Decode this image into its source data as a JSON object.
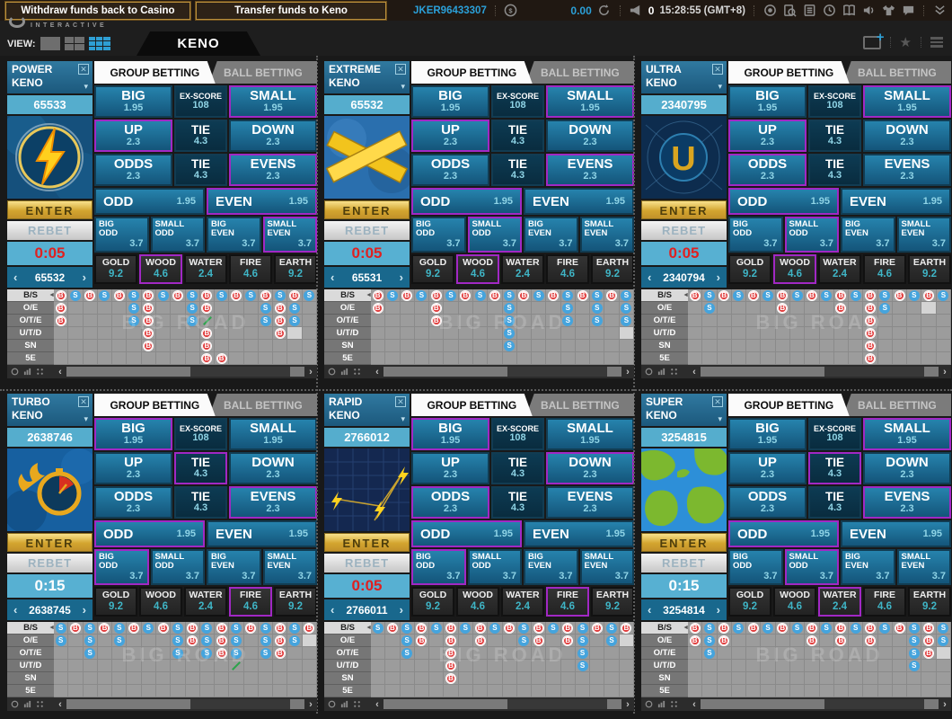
{
  "topbar": {
    "withdraw_label": "Withdraw funds back to Casino",
    "transfer_label": "Transfer funds to Keno",
    "username": "JKER96433307",
    "balance": "0.00",
    "bet_count": "0",
    "time": "15:28:55 (GMT+8)"
  },
  "navbar": {
    "brand_text": "INTERACTIVE",
    "view_label": "VIEW:",
    "tab_label": "KENO"
  },
  "icons": {
    "close": "✕",
    "chevron_down": "▾",
    "prev": "‹",
    "next": "›",
    "label_arrow": "◄"
  },
  "bet_template": {
    "tabs": [
      "GROUP BETTING",
      "BALL BETTING"
    ],
    "enter_label": "ENTER",
    "rebet_label": "REBET",
    "main": [
      {
        "key": "big",
        "label": "BIG",
        "value": "1.95"
      },
      {
        "key": "exscore",
        "label": "EX-SCORE",
        "value": "108",
        "dark": true,
        "small_label": true
      },
      {
        "key": "small",
        "label": "SMALL",
        "value": "1.95"
      },
      {
        "key": "up",
        "label": "UP",
        "value": "2.3"
      },
      {
        "key": "tie1",
        "label": "TIE",
        "value": "4.3",
        "dark": true
      },
      {
        "key": "down",
        "label": "DOWN",
        "value": "2.3"
      },
      {
        "key": "odds",
        "label": "ODDS",
        "value": "2.3"
      },
      {
        "key": "tie2",
        "label": "TIE",
        "value": "4.3",
        "dark": true
      },
      {
        "key": "evens",
        "label": "EVENS",
        "value": "2.3"
      }
    ],
    "oddeven": [
      {
        "key": "odd",
        "label": "ODD",
        "value": "1.95"
      },
      {
        "key": "even",
        "label": "EVEN",
        "value": "1.95"
      }
    ],
    "combos": [
      {
        "key": "bigodd",
        "label": "BIG ODD",
        "value": "3.7"
      },
      {
        "key": "smallodd",
        "label": "SMALL ODD",
        "value": "3.7"
      },
      {
        "key": "bigeven",
        "label": "BIG EVEN",
        "value": "3.7"
      },
      {
        "key": "smalleven",
        "label": "SMALL EVEN",
        "value": "3.7"
      }
    ],
    "elements": [
      {
        "key": "gold",
        "label": "GOLD",
        "value": "9.2"
      },
      {
        "key": "wood",
        "label": "WOOD",
        "value": "4.6"
      },
      {
        "key": "water",
        "label": "WATER",
        "value": "2.4"
      },
      {
        "key": "fire",
        "label": "FIRE",
        "value": "4.6"
      },
      {
        "key": "earth",
        "label": "EARTH",
        "value": "9.2"
      }
    ],
    "road_rows": [
      "B/S",
      "O/E",
      "O/T/E",
      "U/T/D",
      "SN",
      "5E"
    ],
    "road_watermark": "BIG ROAD"
  },
  "colors": {
    "accent_blue": "#2ba0d8",
    "highlight_purple": "#a128c4",
    "big_red": "#e13b3b",
    "small_blue": "#45a4dd",
    "gold": "#d3a52f"
  },
  "panels": [
    {
      "name_line1": "POWER",
      "name_line2": "KENO",
      "round": "65533",
      "prev_round": "65532",
      "timer": "0:05",
      "timer_urgent": true,
      "logo": "power",
      "highlights": [
        "small",
        "up",
        "evens",
        "even",
        "smalleven",
        "wood"
      ],
      "road": [
        [
          "B",
          "S",
          "B",
          "S",
          "B",
          "S",
          "B",
          "S",
          "B",
          "S",
          "B",
          "S",
          "B",
          "S",
          "B",
          "S",
          "B",
          "S"
        ],
        [
          "B",
          "",
          "",
          "",
          "",
          "S",
          "B",
          "",
          "",
          "S",
          "B",
          "",
          "",
          "",
          "S",
          "B",
          "S",
          ""
        ],
        [
          "B",
          "",
          "",
          "",
          "",
          "S",
          "B",
          "",
          "",
          "S",
          "X",
          "",
          "",
          "",
          "S",
          "B",
          "S",
          ""
        ],
        [
          "",
          "",
          "",
          "",
          "",
          "",
          "B",
          "",
          "",
          "",
          "B",
          "",
          "",
          "",
          "",
          "B",
          "H",
          ""
        ],
        [
          "",
          "",
          "",
          "",
          "",
          "",
          "B",
          "",
          "",
          "",
          "B",
          "",
          "",
          "",
          "",
          "",
          "",
          ""
        ],
        [
          "",
          "",
          "",
          "",
          "",
          "",
          "",
          "",
          "",
          "",
          "B",
          "B",
          "",
          "",
          "",
          "",
          "",
          ""
        ]
      ]
    },
    {
      "name_line1": "EXTREME",
      "name_line2": "KENO",
      "round": "65532",
      "prev_round": "65531",
      "timer": "0:05",
      "timer_urgent": true,
      "logo": "extreme",
      "highlights": [
        "small",
        "up",
        "evens",
        "odd",
        "smallodd",
        "wood"
      ],
      "road": [
        [
          "B",
          "S",
          "B",
          "S",
          "B",
          "S",
          "B",
          "S",
          "B",
          "S",
          "B",
          "S",
          "B",
          "S",
          "B",
          "S",
          "B",
          "S"
        ],
        [
          "B",
          "",
          "",
          "",
          "B",
          "",
          "",
          "",
          "",
          "S",
          "",
          "",
          "",
          "S",
          "",
          "S",
          "",
          "S"
        ],
        [
          "",
          "",
          "",
          "",
          "B",
          "",
          "",
          "",
          "",
          "S",
          "",
          "",
          "",
          "S",
          "",
          "S",
          "",
          "S"
        ],
        [
          "",
          "",
          "",
          "",
          "",
          "",
          "",
          "",
          "",
          "S",
          "",
          "",
          "",
          "",
          "",
          "",
          "",
          "H"
        ],
        [
          "",
          "",
          "",
          "",
          "",
          "",
          "",
          "",
          "",
          "S",
          "",
          "",
          "",
          "",
          "",
          "",
          "",
          ""
        ],
        [
          "",
          "",
          "",
          "",
          "",
          "",
          "",
          "",
          "",
          "",
          "",
          "",
          "",
          "",
          "",
          "",
          "",
          ""
        ]
      ]
    },
    {
      "name_line1": "ULTRA",
      "name_line2": "KENO",
      "round": "2340795",
      "prev_round": "2340794",
      "timer": "0:05",
      "timer_urgent": true,
      "logo": "ultra",
      "highlights": [
        "small",
        "up",
        "odds",
        "odd",
        "smallodd",
        "wood"
      ],
      "road": [
        [
          "B",
          "S",
          "B",
          "S",
          "B",
          "S",
          "B",
          "S",
          "B",
          "S",
          "B",
          "S",
          "B",
          "S",
          "B",
          "S",
          "B",
          "S"
        ],
        [
          "",
          "S",
          "",
          "",
          "",
          "",
          "B",
          "",
          "",
          "",
          "B",
          "",
          "B",
          "S",
          "",
          "",
          "H",
          ""
        ],
        [
          "",
          "",
          "",
          "",
          "",
          "",
          "",
          "",
          "",
          "",
          "",
          "",
          "B",
          "",
          "",
          "",
          "",
          ""
        ],
        [
          "",
          "",
          "",
          "",
          "",
          "",
          "",
          "",
          "",
          "",
          "",
          "",
          "B",
          "",
          "",
          "",
          "",
          ""
        ],
        [
          "",
          "",
          "",
          "",
          "",
          "",
          "",
          "",
          "",
          "",
          "",
          "",
          "B",
          "",
          "",
          "",
          "",
          ""
        ],
        [
          "",
          "",
          "",
          "",
          "",
          "",
          "",
          "",
          "",
          "",
          "",
          "",
          "B",
          "",
          "",
          "",
          "",
          ""
        ]
      ]
    },
    {
      "name_line1": "TURBO",
      "name_line2": "KENO",
      "round": "2638746",
      "prev_round": "2638745",
      "timer": "0:15",
      "timer_urgent": false,
      "logo": "turbo",
      "highlights": [
        "big",
        "tie1",
        "evens",
        "odd",
        "bigodd",
        "fire"
      ],
      "road": [
        [
          "S",
          "B",
          "S",
          "B",
          "S",
          "B",
          "S",
          "B",
          "S",
          "B",
          "S",
          "B",
          "S",
          "B",
          "S",
          "B",
          "S",
          "B"
        ],
        [
          "S",
          "",
          "S",
          "",
          "S",
          "",
          "",
          "",
          "S",
          "B",
          "S",
          "B",
          "S",
          "",
          "S",
          "B",
          "S",
          "H"
        ],
        [
          "",
          "",
          "S",
          "",
          "",
          "",
          "",
          "",
          "S",
          "",
          "S",
          "B",
          "S",
          "",
          "S",
          "B",
          "",
          ""
        ],
        [
          "",
          "",
          "",
          "",
          "",
          "",
          "",
          "",
          "",
          "",
          "",
          "",
          "X",
          "",
          "",
          "",
          "",
          ""
        ],
        [
          "",
          "",
          "",
          "",
          "",
          "",
          "",
          "",
          "",
          "",
          "",
          "",
          "",
          "",
          "",
          "",
          "",
          ""
        ],
        [
          "",
          "",
          "",
          "",
          "",
          "",
          "",
          "",
          "",
          "",
          "",
          "",
          "",
          "",
          "",
          "",
          "",
          ""
        ]
      ]
    },
    {
      "name_line1": "RAPID",
      "name_line2": "KENO",
      "round": "2766012",
      "prev_round": "2766011",
      "timer": "0:05",
      "timer_urgent": true,
      "logo": "rapid",
      "highlights": [
        "big",
        "down",
        "odds",
        "odd",
        "bigodd",
        "fire"
      ],
      "road": [
        [
          "S",
          "B",
          "S",
          "B",
          "S",
          "B",
          "S",
          "B",
          "S",
          "B",
          "S",
          "B",
          "S",
          "B",
          "S",
          "B",
          "S",
          "B"
        ],
        [
          "",
          "",
          "S",
          "B",
          "",
          "B",
          "",
          "B",
          "",
          "",
          "S",
          "B",
          "",
          "B",
          "S",
          "",
          "S",
          "H"
        ],
        [
          "",
          "",
          "S",
          "",
          "",
          "B",
          "",
          "",
          "",
          "",
          "",
          "",
          "",
          "",
          "S",
          "",
          "",
          ""
        ],
        [
          "",
          "",
          "",
          "",
          "",
          "B",
          "",
          "",
          "",
          "",
          "",
          "",
          "",
          "",
          "S",
          "",
          "",
          ""
        ],
        [
          "",
          "",
          "",
          "",
          "",
          "B",
          "",
          "",
          "",
          "",
          "",
          "",
          "",
          "",
          "",
          "",
          "",
          ""
        ],
        [
          "",
          "",
          "",
          "",
          "",
          "",
          "",
          "",
          "",
          "",
          "",
          "",
          "",
          "",
          "",
          "",
          "",
          ""
        ]
      ]
    },
    {
      "name_line1": "SUPER",
      "name_line2": "KENO",
      "round": "3254815",
      "prev_round": "3254814",
      "timer": "0:15",
      "timer_urgent": false,
      "logo": "super",
      "highlights": [
        "small",
        "tie1",
        "evens",
        "odd",
        "smallodd",
        "water"
      ],
      "road": [
        [
          "B",
          "S",
          "B",
          "S",
          "B",
          "S",
          "B",
          "S",
          "B",
          "S",
          "B",
          "S",
          "B",
          "S",
          "B",
          "S",
          "B",
          "S"
        ],
        [
          "B",
          "S",
          "B",
          "",
          "",
          "",
          "",
          "",
          "B",
          "",
          "B",
          "",
          "B",
          "",
          "",
          "S",
          "B",
          "S"
        ],
        [
          "",
          "S",
          "",
          "",
          "",
          "",
          "",
          "",
          "",
          "",
          "",
          "",
          "",
          "",
          "",
          "S",
          "B",
          "H"
        ],
        [
          "",
          "",
          "",
          "",
          "",
          "",
          "",
          "",
          "",
          "",
          "",
          "",
          "",
          "",
          "",
          "S",
          "",
          ""
        ],
        [
          "",
          "",
          "",
          "",
          "",
          "",
          "",
          "",
          "",
          "",
          "",
          "",
          "",
          "",
          "",
          "",
          "",
          ""
        ],
        [
          "",
          "",
          "",
          "",
          "",
          "",
          "",
          "",
          "",
          "",
          "",
          "",
          "",
          "",
          "",
          "",
          "",
          ""
        ]
      ]
    }
  ]
}
